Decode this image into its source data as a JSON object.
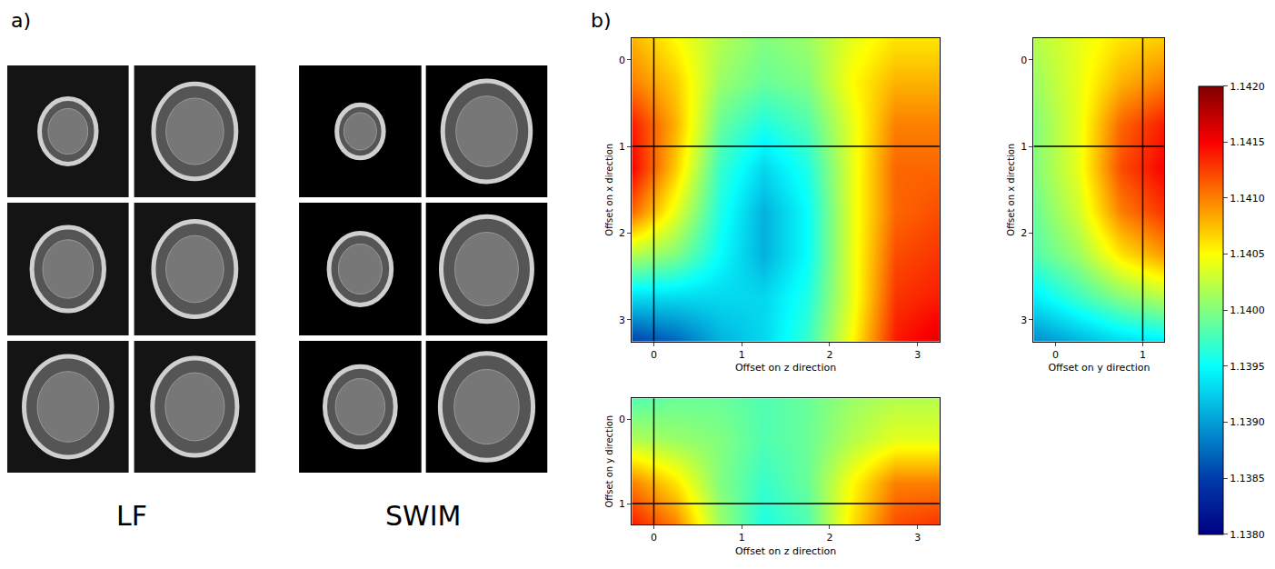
{
  "panel_labels": [
    "a)",
    "b)"
  ],
  "image_groups": [
    "LF",
    "SWIM"
  ],
  "chart_data": [
    {
      "type": "heatmap",
      "xlabel": "Offset on z direction",
      "ylabel": "Offset on x direction",
      "x": [
        -0.25,
        0.25,
        0.75,
        1.25,
        1.75,
        2.25,
        2.75,
        3.25
      ],
      "y": [
        -0.25,
        0.25,
        0.75,
        1.25,
        1.75,
        2.25,
        2.75,
        3.25
      ],
      "z": [
        [
          1.1408,
          1.1405,
          1.1402,
          1.14,
          1.1401,
          1.1404,
          1.1406,
          1.1406
        ],
        [
          1.141,
          1.1407,
          1.1401,
          1.1399,
          1.14,
          1.1405,
          1.1408,
          1.1408
        ],
        [
          1.1414,
          1.1408,
          1.1399,
          1.1396,
          1.1398,
          1.1404,
          1.141,
          1.141
        ],
        [
          1.1415,
          1.1407,
          1.1397,
          1.1393,
          1.1396,
          1.1404,
          1.1411,
          1.1411
        ],
        [
          1.1411,
          1.1404,
          1.1396,
          1.1391,
          1.1395,
          1.1404,
          1.1411,
          1.1412
        ],
        [
          1.1402,
          1.14,
          1.1395,
          1.1391,
          1.1395,
          1.1404,
          1.1412,
          1.1413
        ],
        [
          1.1393,
          1.1393,
          1.1393,
          1.1393,
          1.1396,
          1.1404,
          1.1413,
          1.1414
        ],
        [
          1.1385,
          1.1387,
          1.1391,
          1.1393,
          1.1397,
          1.1405,
          1.1414,
          1.1416
        ]
      ],
      "xlim": [
        -0.25,
        3.25
      ],
      "ylim": [
        3.25,
        -0.25
      ],
      "xticks": [
        0,
        1,
        2,
        3
      ],
      "yticks": [
        0,
        1,
        2,
        3
      ],
      "crosshair": {
        "x": 0,
        "y": 1
      },
      "zlim": [
        1.138,
        1.142
      ],
      "zticks": [
        {
          "value": 1.138,
          "label": "1.1380"
        },
        1.1385,
        {
          "value": 1.139,
          "label": "1.1390"
        },
        1.1395,
        {
          "value": 1.14,
          "label": "1.1400"
        },
        1.1405,
        {
          "value": 1.141,
          "label": "1.1410"
        },
        1.1415,
        {
          "value": 1.142,
          "label": "1.1420"
        }
      ]
    },
    {
      "type": "heatmap",
      "xlabel": "Offset on y direction",
      "ylabel": "Offset on x direction",
      "x": [
        -0.25,
        0.25,
        0.75,
        1.25
      ],
      "y": [
        -0.25,
        0.25,
        0.75,
        1.25,
        1.75,
        2.25,
        2.75,
        3.25
      ],
      "z": [
        [
          1.1402,
          1.1404,
          1.1406,
          1.1407
        ],
        [
          1.1401,
          1.1404,
          1.1408,
          1.141
        ],
        [
          1.14,
          1.1404,
          1.1411,
          1.1414
        ],
        [
          1.14,
          1.1404,
          1.1412,
          1.1415
        ],
        [
          1.1399,
          1.1403,
          1.141,
          1.1413
        ],
        [
          1.1398,
          1.1401,
          1.1406,
          1.1409
        ],
        [
          1.1394,
          1.1397,
          1.14,
          1.1402
        ],
        [
          1.1389,
          1.1391,
          1.1393,
          1.1394
        ]
      ],
      "xlim": [
        -0.25,
        1.25
      ],
      "ylim": [
        3.25,
        -0.25
      ],
      "xticks": [
        0,
        1
      ],
      "yticks": [
        0,
        1,
        2,
        3
      ],
      "crosshair": {
        "x": 1,
        "y": 1
      },
      "zlim": [
        1.138,
        1.142
      ]
    },
    {
      "type": "heatmap",
      "xlabel": "Offset on z direction",
      "ylabel": "Offset on y direction",
      "x": [
        -0.25,
        0.25,
        0.75,
        1.25,
        1.75,
        2.25,
        2.75,
        3.25
      ],
      "y": [
        -0.25,
        0.25,
        0.75,
        1.25
      ],
      "z": [
        [
          1.1398,
          1.1399,
          1.1399,
          1.1398,
          1.1399,
          1.1401,
          1.1402,
          1.1402
        ],
        [
          1.1402,
          1.1401,
          1.14,
          1.1398,
          1.1399,
          1.1402,
          1.1404,
          1.1404
        ],
        [
          1.141,
          1.1406,
          1.14,
          1.1397,
          1.1399,
          1.1405,
          1.141,
          1.141
        ],
        [
          1.1414,
          1.141,
          1.1401,
          1.1396,
          1.1398,
          1.1406,
          1.1412,
          1.1413
        ]
      ],
      "xlim": [
        -0.25,
        3.25
      ],
      "ylim": [
        1.25,
        -0.25
      ],
      "xticks": [
        0,
        1,
        2,
        3
      ],
      "yticks": [
        0,
        1
      ],
      "crosshair": {
        "x": 0,
        "y": 1
      },
      "zlim": [
        1.138,
        1.142
      ]
    }
  ]
}
